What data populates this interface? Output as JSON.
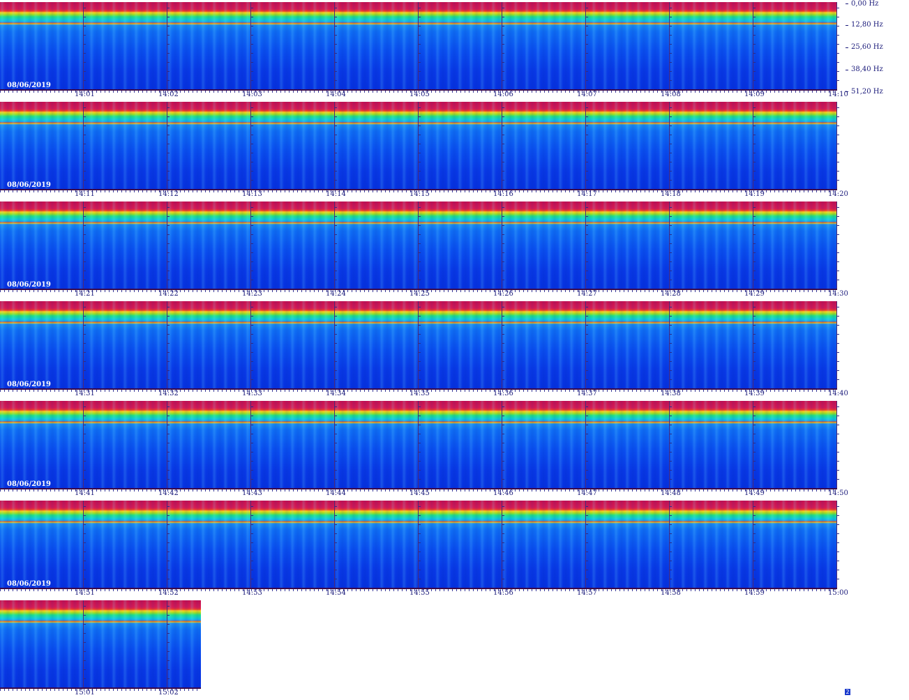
{
  "frequency_axis": {
    "labels": [
      "0,00 Hz",
      "12,80 Hz",
      "25,60 Hz",
      "38,40 Hz",
      "51,20 Hz"
    ]
  },
  "strips": [
    {
      "date": "08/06/2019",
      "minute_labels": [
        "14:01",
        "14:02",
        "14:03",
        "14:04",
        "14:05",
        "14:06",
        "14:07",
        "14:08",
        "14:09",
        "14:10"
      ]
    },
    {
      "date": "08/06/2019",
      "minute_labels": [
        "14:11",
        "14:12",
        "14:13",
        "14:14",
        "14:15",
        "14:16",
        "14:17",
        "14:18",
        "14:19",
        "14:20"
      ]
    },
    {
      "date": "08/06/2019",
      "minute_labels": [
        "14:21",
        "14:22",
        "14:23",
        "14:24",
        "14:25",
        "14:26",
        "14:27",
        "14:28",
        "14:29",
        "14:30"
      ]
    },
    {
      "date": "08/06/2019",
      "minute_labels": [
        "14:31",
        "14:32",
        "14:33",
        "14:34",
        "14:35",
        "14:36",
        "14:37",
        "14:38",
        "14:39",
        "14:40"
      ]
    },
    {
      "date": "08/06/2019",
      "minute_labels": [
        "14:41",
        "14:42",
        "14:43",
        "14:44",
        "14:45",
        "14:46",
        "14:47",
        "14:48",
        "14:49",
        "14:50"
      ]
    },
    {
      "date": "08/06/2019",
      "minute_labels": [
        "14:51",
        "14:52",
        "14:53",
        "14:54",
        "14:55",
        "14:56",
        "14:57",
        "14:58",
        "14:59",
        "15:00"
      ]
    },
    {
      "date": "",
      "minute_labels": [
        "15:01",
        "15:02"
      ]
    }
  ],
  "corner_glyph": "2",
  "colors": {
    "high_intensity": "#d81b55",
    "low_intensity": "#0632e0",
    "axis_text": "#1a1a7a"
  }
}
